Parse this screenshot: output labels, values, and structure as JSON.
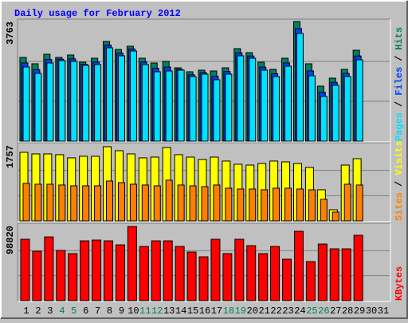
{
  "chart_data": [
    {
      "type": "bar",
      "title": "Daily usage for February 2012",
      "categories": [
        "1",
        "2",
        "3",
        "4",
        "5",
        "6",
        "7",
        "8",
        "9",
        "10",
        "11",
        "12",
        "13",
        "14",
        "15",
        "16",
        "17",
        "18",
        "19",
        "20",
        "21",
        "22",
        "23",
        "24",
        "25",
        "26",
        "27",
        "28",
        "29",
        "30",
        "31"
      ],
      "category_colors": [
        "#000000",
        "#000000",
        "#000000",
        "#00805c",
        "#00805c",
        "#000000",
        "#000000",
        "#000000",
        "#000000",
        "#000000",
        "#00805c",
        "#00805c",
        "#000000",
        "#000000",
        "#000000",
        "#000000",
        "#000000",
        "#00805c",
        "#00805c",
        "#000000",
        "#000000",
        "#000000",
        "#000000",
        "#000000",
        "#00805c",
        "#00805c",
        "#000000",
        "#000000",
        "#000000",
        "#000000",
        "#000000"
      ],
      "legend_separator": "/",
      "ylim": [
        0,
        3763
      ],
      "yticks": [
        3763
      ],
      "series": [
        {
          "name": "Hits",
          "color": "#00805c",
          "values": [
            2634,
            2434,
            2735,
            2634,
            2710,
            2484,
            2609,
            3136,
            2885,
            2986,
            2609,
            2459,
            2509,
            2308,
            2183,
            2233,
            2208,
            2308,
            2910,
            2785,
            2484,
            2258,
            2609,
            3763,
            2434,
            1731,
            1982,
            2258,
            2860,
            null,
            null
          ]
        },
        {
          "name": "Files",
          "color": "#0040ff",
          "values": [
            2460,
            2250,
            2570,
            2580,
            2590,
            2420,
            2490,
            3020,
            2770,
            2900,
            2490,
            2290,
            2330,
            2260,
            2090,
            2160,
            2040,
            2190,
            2780,
            2680,
            2330,
            2120,
            2460,
            3540,
            2210,
            1540,
            1850,
            2130,
            2680,
            null,
            null
          ]
        },
        {
          "name": "Pages",
          "color": "#00e0ff",
          "values": [
            2333,
            2133,
            2459,
            2534,
            2509,
            2384,
            2409,
            2936,
            2685,
            2835,
            2409,
            2183,
            2208,
            2233,
            2032,
            2108,
            1932,
            2108,
            2685,
            2609,
            2233,
            2032,
            2358,
            3387,
            2057,
            1405,
            1756,
            2032,
            2559,
            null,
            null
          ]
        }
      ]
    },
    {
      "type": "bar",
      "ylim": [
        0,
        1757
      ],
      "yticks": [
        1757
      ],
      "series": [
        {
          "name": "Visits",
          "color": "#ffff00",
          "values": [
            1591,
            1554,
            1554,
            1536,
            1462,
            1499,
            1499,
            1721,
            1628,
            1554,
            1462,
            1480,
            1702,
            1536,
            1480,
            1425,
            1480,
            1388,
            1314,
            1295,
            1332,
            1388,
            1369,
            1332,
            1240,
            722,
            259,
            1295,
            1443,
            null,
            null
          ]
        },
        {
          "name": "Sites",
          "color": "#ff8000",
          "values": [
            870,
            851,
            851,
            833,
            814,
            814,
            814,
            925,
            888,
            851,
            833,
            814,
            944,
            833,
            814,
            796,
            833,
            759,
            740,
            740,
            722,
            759,
            759,
            740,
            722,
            500,
            204,
            851,
            833,
            null,
            null
          ]
        }
      ]
    },
    {
      "type": "bar",
      "ylim": [
        0,
        98820
      ],
      "yticks": [
        98820
      ],
      "series": [
        {
          "name": "KBytes",
          "color": "#ff0000",
          "values": [
            80927,
            65162,
            84066,
            66213,
            62009,
            78825,
            79876,
            78825,
            73570,
            97749,
            71468,
            78825,
            78825,
            71468,
            64111,
            57805,
            80927,
            62009,
            80927,
            72519,
            62009,
            71468,
            54652,
            91437,
            51499,
            74621,
            68315,
            68315,
            86182,
            null,
            null
          ]
        }
      ]
    }
  ]
}
